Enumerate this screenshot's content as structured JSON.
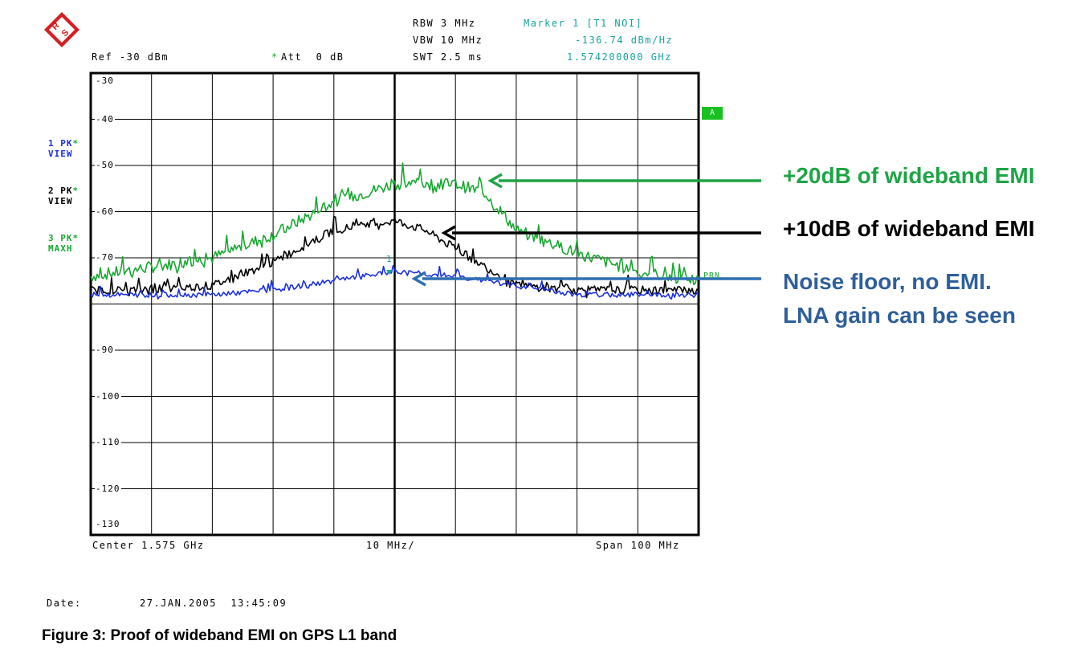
{
  "header": {
    "rbw": "RBW 3 MHz",
    "vbw": "VBW 10 MHz",
    "swt": "SWT 2.5 ms",
    "marker_title": "Marker 1 [T1 NOI]",
    "marker_level": "-136.74 dBm/Hz",
    "marker_freq": "1.574200000 GHz",
    "ref": "Ref -30 dBm",
    "att_star": "*",
    "att": "Att  0 dB"
  },
  "traces": [
    {
      "line1": "1 PK",
      "line2": "VIEW",
      "color": "#1a30e0"
    },
    {
      "line1": "2 PK",
      "line2": "VIEW",
      "color": "#000000"
    },
    {
      "line1": "3 PK",
      "line2": "MAXH",
      "color": "#18a830"
    }
  ],
  "trace_star": "*",
  "badge_a": "A",
  "prn_label": "PRN",
  "marker_label": "1",
  "footer": {
    "center": "Center 1.575 GHz",
    "div": "10 MHz/",
    "span": "Span 100 MHz",
    "date_label": "Date:",
    "date_value": "27.JAN.2005  13:45:09"
  },
  "annotations": {
    "green": "+20dB of wideband EMI",
    "black": "+10dB of wideband EMI",
    "blue_line1": "Noise floor, no EMI.",
    "blue_line2": "LNA gain can be seen",
    "green_color": "#1ea446",
    "black_color": "#000000",
    "blue_color": "#2e5f9a"
  },
  "caption": "Figure 3: Proof of wideband EMI on GPS L1 band",
  "chart_data": {
    "type": "line",
    "x_label": "Center 1.575 GHz / Span 100 MHz",
    "xlim": [
      1.525,
      1.625
    ],
    "x_unit": "GHz",
    "ylim": [
      -130,
      -30
    ],
    "y_ticks": [
      "-30",
      "-40",
      "-50",
      "-60",
      "-70",
      "-90",
      "-100",
      "-110",
      "-120",
      "-130"
    ],
    "y_tick_values": [
      -30,
      -40,
      -50,
      -60,
      -70,
      -90,
      -100,
      -110,
      -120,
      -130
    ],
    "grid": true,
    "series": [
      {
        "name": "3 PK MAXH",
        "color": "#18a830",
        "x": [
          1.525,
          1.535,
          1.545,
          1.555,
          1.565,
          1.575,
          1.58,
          1.585,
          1.59,
          1.595,
          1.605,
          1.615,
          1.625
        ],
        "y": [
          -74,
          -72,
          -70,
          -65,
          -58,
          -54,
          -54,
          -54,
          -56,
          -64,
          -69,
          -73,
          -75
        ]
      },
      {
        "name": "2 PK VIEW",
        "color": "#000000",
        "x": [
          1.525,
          1.535,
          1.545,
          1.555,
          1.565,
          1.575,
          1.58,
          1.585,
          1.595,
          1.605,
          1.615,
          1.625
        ],
        "y": [
          -77,
          -77,
          -76,
          -71,
          -64,
          -62,
          -64,
          -68,
          -76,
          -77,
          -77,
          -77
        ]
      },
      {
        "name": "1 PK VIEW",
        "color": "#1a30e0",
        "x": [
          1.525,
          1.535,
          1.545,
          1.555,
          1.565,
          1.575,
          1.585,
          1.595,
          1.605,
          1.615,
          1.625
        ],
        "y": [
          -78,
          -78,
          -78,
          -77,
          -75,
          -73,
          -74,
          -76,
          -78,
          -78,
          -78
        ]
      }
    ]
  }
}
